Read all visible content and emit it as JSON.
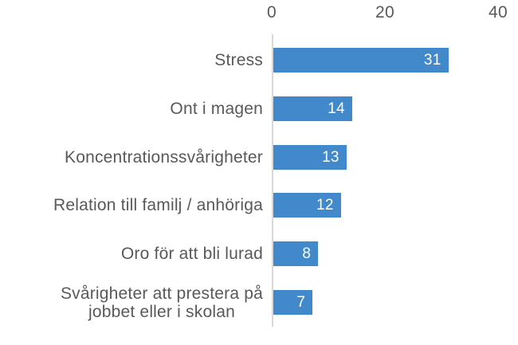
{
  "chart_data": {
    "type": "bar",
    "orientation": "horizontal",
    "title": "",
    "xlabel": "",
    "ylabel": "",
    "categories": [
      "Stress",
      "Ont i magen",
      "Koncentrationssvårigheter",
      "Relation till familj / anhöriga",
      "Oro för att bli lurad",
      "Svårigheter att prestera på\njobbet eller i skolan"
    ],
    "values": [
      31,
      14,
      13,
      12,
      8,
      7
    ],
    "xlim": [
      0,
      40
    ],
    "x_ticks": [
      "0",
      "20",
      "40"
    ],
    "axis_position": "top",
    "grid": "off",
    "legend": "none",
    "value_labels": "inside-end",
    "colors": {
      "bar": "#4289CB",
      "category_label": "#595959",
      "tick_label": "#595959",
      "value_label": "#FFFFFF",
      "axis_line": "#D9D9D9",
      "background": "#FFFFFF"
    }
  }
}
